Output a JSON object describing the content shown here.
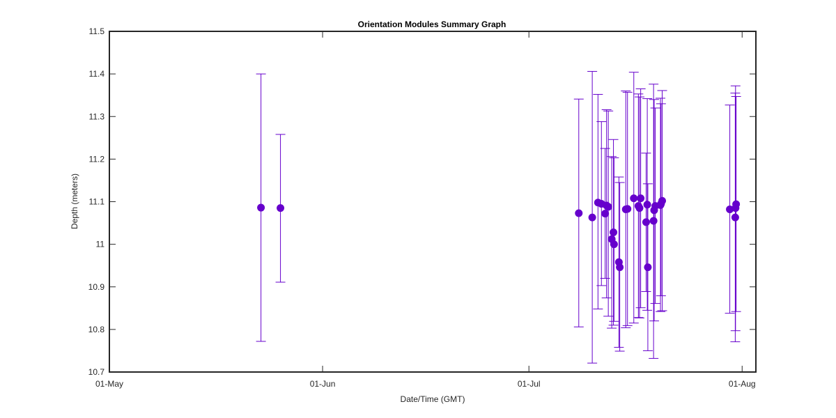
{
  "chart_data": {
    "type": "scatter",
    "title": "Orientation Modules Summary Graph",
    "xlabel": "Date/Time (GMT)",
    "ylabel": "Depth (meters)",
    "x_tick_labels": [
      "01-May",
      "01-Jun",
      "01-Jul",
      "01-Aug"
    ],
    "x_tick_dates": [
      "2015-05-01",
      "2015-06-01",
      "2015-07-01",
      "2015-08-01"
    ],
    "xlim": [
      "2015-05-01",
      "2015-08-03"
    ],
    "ylim": [
      10.7,
      11.5
    ],
    "y_ticks": [
      10.7,
      10.8,
      10.9,
      11,
      11.1,
      11.2,
      11.3,
      11.4,
      11.5
    ],
    "y_tick_labels": [
      "10.7",
      "10.8",
      "10.9",
      "11",
      "11.1",
      "11.2",
      "11.3",
      "11.4",
      "11.5"
    ],
    "grid": false,
    "color": "#6600CC",
    "series": [
      {
        "points": [
          {
            "x": "2015-05-23T01:00",
            "y": 11.086,
            "low": 10.772,
            "high": 11.4
          },
          {
            "x": "2015-05-25T21:00",
            "y": 11.085,
            "low": 10.911,
            "high": 11.258
          },
          {
            "x": "2015-07-08T06:00",
            "y": 11.073,
            "low": 10.806,
            "high": 11.341
          },
          {
            "x": "2015-07-10T05:00",
            "y": 11.063,
            "low": 10.721,
            "high": 11.406
          },
          {
            "x": "2015-07-11T01:00",
            "y": 11.098,
            "low": 10.848,
            "high": 11.352
          },
          {
            "x": "2015-07-11T13:00",
            "y": 11.095,
            "low": 10.903,
            "high": 11.288
          },
          {
            "x": "2015-07-12T02:00",
            "y": 11.072,
            "low": 10.92,
            "high": 11.225
          },
          {
            "x": "2015-07-12T07:00",
            "y": 11.091,
            "low": 10.874,
            "high": 11.316
          },
          {
            "x": "2015-07-12T13:00",
            "y": 11.088,
            "low": 10.831,
            "high": 11.313
          },
          {
            "x": "2015-07-13T01:00",
            "y": 11.012,
            "low": 10.803,
            "high": 11.206
          },
          {
            "x": "2015-07-13T07:00",
            "y": 11.028,
            "low": 10.81,
            "high": 11.246
          },
          {
            "x": "2015-07-13T09:00",
            "y": 11.0,
            "low": 10.819,
            "high": 11.203
          },
          {
            "x": "2015-07-14T02:00",
            "y": 10.958,
            "low": 10.758,
            "high": 11.158
          },
          {
            "x": "2015-07-14T05:00",
            "y": 10.946,
            "low": 10.749,
            "high": 11.145
          },
          {
            "x": "2015-07-15T02:00",
            "y": 11.082,
            "low": 10.804,
            "high": 11.36
          },
          {
            "x": "2015-07-15T08:00",
            "y": 11.083,
            "low": 10.809,
            "high": 11.357
          },
          {
            "x": "2015-07-16T06:00",
            "y": 11.108,
            "low": 10.815,
            "high": 11.404
          },
          {
            "x": "2015-07-16T22:00",
            "y": 11.09,
            "low": 10.828,
            "high": 11.353
          },
          {
            "x": "2015-07-17T02:00",
            "y": 11.085,
            "low": 10.827,
            "high": 11.346
          },
          {
            "x": "2015-07-17T06:00",
            "y": 11.108,
            "low": 10.851,
            "high": 11.365
          },
          {
            "x": "2015-07-18T01:00",
            "y": 11.052,
            "low": 10.889,
            "high": 11.214
          },
          {
            "x": "2015-07-18T05:00",
            "y": 11.093,
            "low": 10.845,
            "high": 11.342
          },
          {
            "x": "2015-07-18T07:00",
            "y": 10.946,
            "low": 10.75,
            "high": 11.142
          },
          {
            "x": "2015-07-19T03:00",
            "y": 11.055,
            "low": 10.732,
            "high": 11.376
          },
          {
            "x": "2015-07-19T05:00",
            "y": 11.08,
            "low": 10.82,
            "high": 11.34
          },
          {
            "x": "2015-07-19T09:00",
            "y": 11.09,
            "low": 10.861,
            "high": 11.32
          },
          {
            "x": "2015-07-20T03:00",
            "y": 11.092,
            "low": 10.842,
            "high": 11.343
          },
          {
            "x": "2015-07-20T05:00",
            "y": 11.095,
            "low": 10.879,
            "high": 11.33
          },
          {
            "x": "2015-07-20T09:00",
            "y": 11.102,
            "low": 10.844,
            "high": 11.361
          },
          {
            "x": "2015-07-30T05:00",
            "y": 11.082,
            "low": 10.838,
            "high": 11.327
          },
          {
            "x": "2015-07-31T00:00",
            "y": 11.063,
            "low": 10.771,
            "high": 11.355
          },
          {
            "x": "2015-07-31T01:00",
            "y": 11.085,
            "low": 10.797,
            "high": 11.372
          },
          {
            "x": "2015-07-31T03:00",
            "y": 11.094,
            "low": 10.842,
            "high": 11.347
          }
        ]
      }
    ]
  }
}
